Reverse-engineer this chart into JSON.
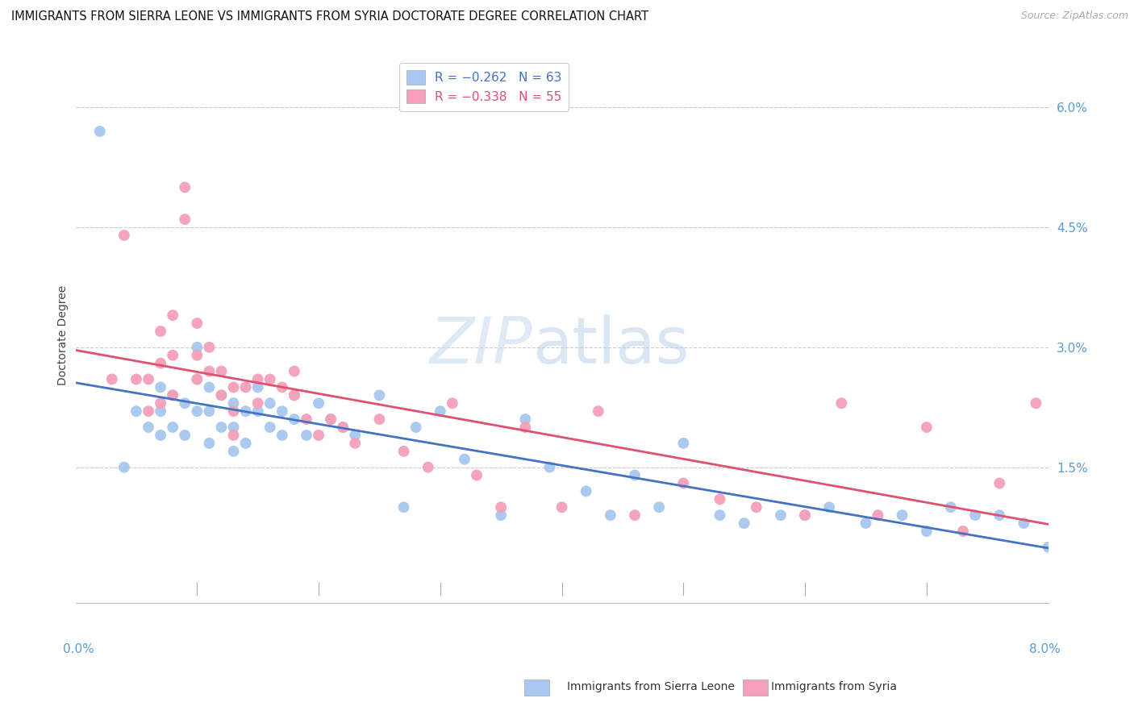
{
  "title": "IMMIGRANTS FROM SIERRA LEONE VS IMMIGRANTS FROM SYRIA DOCTORATE DEGREE CORRELATION CHART",
  "source": "Source: ZipAtlas.com",
  "ylabel": "Doctorate Degree",
  "xlim": [
    0.0,
    0.08
  ],
  "ylim": [
    -0.002,
    0.065
  ],
  "right_ytick_vals": [
    0.015,
    0.03,
    0.045,
    0.06
  ],
  "right_yticklabels": [
    "1.5%",
    "3.0%",
    "4.5%",
    "6.0%"
  ],
  "watermark_zip": "ZIP",
  "watermark_atlas": "atlas",
  "sierra_leone_color": "#a8c8f0",
  "syria_color": "#f5a0b8",
  "sierra_leone_line_color": "#4472c4",
  "syria_line_color": "#e05070",
  "legend_sl_label": "R = −0.262   N = 63",
  "legend_sy_label": "R = −0.338   N = 55",
  "bottom_legend_sl": "Immigrants from Sierra Leone",
  "bottom_legend_sy": "Immigrants from Syria",
  "sierra_leone_x": [
    0.002,
    0.004,
    0.005,
    0.006,
    0.007,
    0.007,
    0.007,
    0.008,
    0.008,
    0.009,
    0.009,
    0.01,
    0.01,
    0.01,
    0.011,
    0.011,
    0.011,
    0.012,
    0.012,
    0.013,
    0.013,
    0.013,
    0.014,
    0.014,
    0.015,
    0.015,
    0.016,
    0.016,
    0.017,
    0.017,
    0.018,
    0.018,
    0.019,
    0.02,
    0.021,
    0.022,
    0.023,
    0.025,
    0.027,
    0.028,
    0.03,
    0.032,
    0.035,
    0.037,
    0.039,
    0.042,
    0.044,
    0.046,
    0.048,
    0.05,
    0.053,
    0.055,
    0.058,
    0.06,
    0.062,
    0.065,
    0.068,
    0.07,
    0.072,
    0.074,
    0.076,
    0.078,
    0.08
  ],
  "sierra_leone_y": [
    0.057,
    0.015,
    0.022,
    0.02,
    0.025,
    0.022,
    0.019,
    0.024,
    0.02,
    0.023,
    0.019,
    0.03,
    0.026,
    0.022,
    0.025,
    0.022,
    0.018,
    0.024,
    0.02,
    0.023,
    0.02,
    0.017,
    0.022,
    0.018,
    0.025,
    0.022,
    0.023,
    0.02,
    0.022,
    0.019,
    0.024,
    0.021,
    0.019,
    0.023,
    0.021,
    0.02,
    0.019,
    0.024,
    0.01,
    0.02,
    0.022,
    0.016,
    0.009,
    0.021,
    0.015,
    0.012,
    0.009,
    0.014,
    0.01,
    0.018,
    0.009,
    0.008,
    0.009,
    0.009,
    0.01,
    0.008,
    0.009,
    0.007,
    0.01,
    0.009,
    0.009,
    0.008,
    0.005
  ],
  "syria_x": [
    0.003,
    0.004,
    0.005,
    0.006,
    0.006,
    0.007,
    0.007,
    0.007,
    0.008,
    0.008,
    0.008,
    0.009,
    0.009,
    0.01,
    0.01,
    0.01,
    0.011,
    0.011,
    0.012,
    0.012,
    0.013,
    0.013,
    0.013,
    0.014,
    0.015,
    0.015,
    0.016,
    0.017,
    0.018,
    0.018,
    0.019,
    0.02,
    0.021,
    0.022,
    0.023,
    0.025,
    0.027,
    0.029,
    0.031,
    0.033,
    0.035,
    0.037,
    0.04,
    0.043,
    0.046,
    0.05,
    0.053,
    0.056,
    0.06,
    0.063,
    0.066,
    0.07,
    0.073,
    0.076,
    0.079
  ],
  "syria_y": [
    0.026,
    0.044,
    0.026,
    0.026,
    0.022,
    0.032,
    0.028,
    0.023,
    0.034,
    0.029,
    0.024,
    0.05,
    0.046,
    0.033,
    0.029,
    0.026,
    0.03,
    0.027,
    0.027,
    0.024,
    0.025,
    0.022,
    0.019,
    0.025,
    0.026,
    0.023,
    0.026,
    0.025,
    0.027,
    0.024,
    0.021,
    0.019,
    0.021,
    0.02,
    0.018,
    0.021,
    0.017,
    0.015,
    0.023,
    0.014,
    0.01,
    0.02,
    0.01,
    0.022,
    0.009,
    0.013,
    0.011,
    0.01,
    0.009,
    0.023,
    0.009,
    0.02,
    0.007,
    0.013,
    0.023
  ],
  "title_fontsize": 10.5,
  "source_fontsize": 9,
  "axis_label_fontsize": 10,
  "tick_fontsize": 11,
  "background_color": "#ffffff",
  "grid_color": "#cccccc",
  "right_axis_color": "#5b9bd5",
  "bottom_axis_color": "#5b9bd5"
}
